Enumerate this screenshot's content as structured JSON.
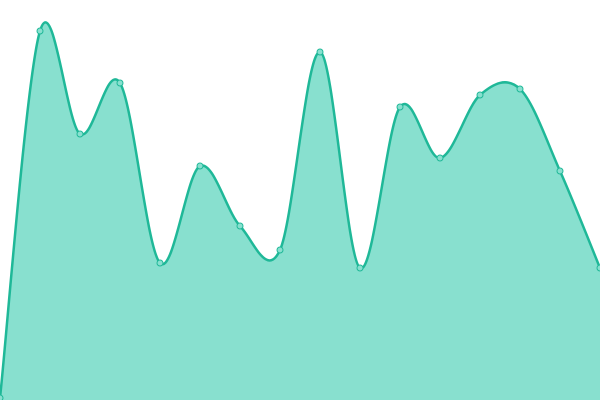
{
  "chart_data": {
    "type": "area",
    "categories": [
      null,
      null,
      null,
      null,
      null,
      null,
      null,
      null,
      null,
      null,
      null,
      null,
      null,
      null,
      null,
      null
    ],
    "values": [
      2,
      369,
      266,
      317,
      137,
      234,
      174,
      150,
      348,
      132,
      293,
      242,
      305,
      311,
      229,
      132
    ],
    "ylim": [
      0,
      400
    ],
    "color": "#1fb898",
    "fill": "#88e0cf"
  }
}
